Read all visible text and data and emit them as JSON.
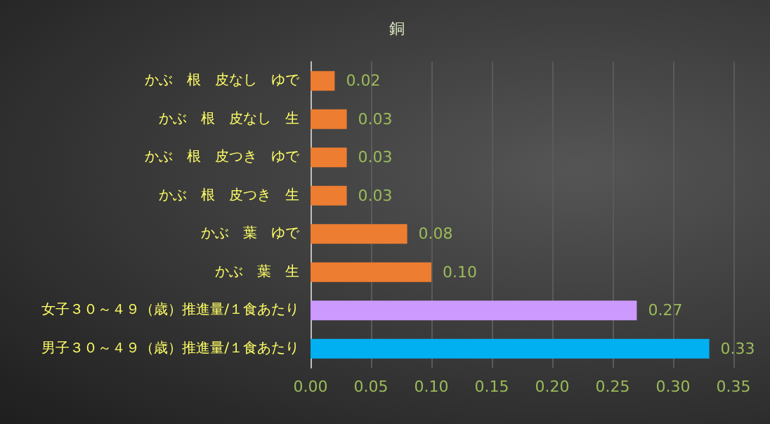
{
  "chart_data": {
    "type": "bar",
    "orientation": "horizontal",
    "title": "銅",
    "categories": [
      "かぶ　根　皮なし　ゆで",
      "かぶ　根　皮なし　生",
      "かぶ　根　皮つき　ゆで",
      "かぶ　根　皮つき　生",
      "かぶ　葉　ゆで",
      "かぶ　葉　生",
      "女子３０～４９（歳）推進量/１食あたり",
      "男子３０～４９（歳）推進量/１食あたり"
    ],
    "values": [
      0.02,
      0.03,
      0.03,
      0.03,
      0.08,
      0.1,
      0.27,
      0.33
    ],
    "value_labels": [
      "0.02",
      "0.03",
      "0.03",
      "0.03",
      "0.08",
      "0.10",
      "0.27",
      "0.33"
    ],
    "colors": [
      "#ed7d31",
      "#ed7d31",
      "#ed7d31",
      "#ed7d31",
      "#ed7d31",
      "#ed7d31",
      "#cc99ff",
      "#00b0f0"
    ],
    "xlim": [
      0,
      0.35
    ],
    "xticks": [
      {
        "value": 0,
        "label": "0.00"
      },
      {
        "value": 0.05,
        "label": "0.05"
      },
      {
        "value": 0.1,
        "label": "0.10"
      },
      {
        "value": 0.15,
        "label": "0.15"
      },
      {
        "value": 0.2,
        "label": "0.20"
      },
      {
        "value": 0.25,
        "label": "0.25"
      },
      {
        "value": 0.3,
        "label": "0.30"
      },
      {
        "value": 0.35,
        "label": "0.35"
      }
    ],
    "grid": "x"
  }
}
